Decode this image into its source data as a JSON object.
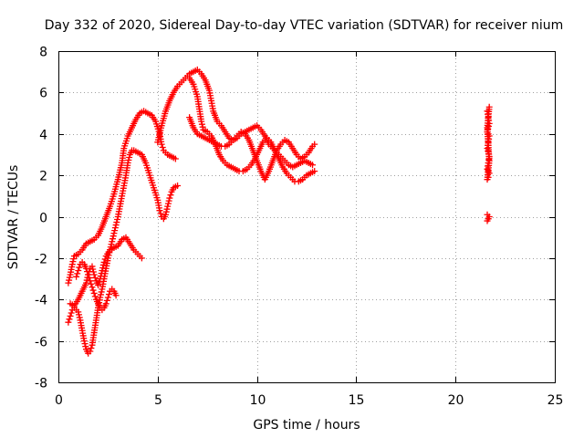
{
  "chart_data": {
    "type": "scatter",
    "title": "Day 332 of 2020, Sidereal Day-to-day VTEC variation (SDTVAR) for receiver nium",
    "xlabel": "GPS time / hours",
    "ylabel": "SDTVAR / TECUs",
    "xlim": [
      0,
      25
    ],
    "ylim": [
      -8,
      8
    ],
    "xticks": [
      "0",
      "5",
      "10",
      "15",
      "20",
      "25"
    ],
    "yticks": [
      "-8",
      "-6",
      "-4",
      "-2",
      "0",
      "2",
      "4",
      "6",
      "8"
    ],
    "grid": true,
    "marker": "plus",
    "color": "#ff0000",
    "series": [
      {
        "points": [
          [
            0.5,
            -3.2
          ],
          [
            0.6,
            -2.8
          ],
          [
            0.7,
            -2.3
          ],
          [
            0.8,
            -1.9
          ],
          [
            1.0,
            -1.8
          ],
          [
            1.2,
            -1.6
          ],
          [
            1.4,
            -1.3
          ],
          [
            1.6,
            -1.2
          ],
          [
            1.8,
            -1.1
          ],
          [
            2.0,
            -0.9
          ],
          [
            2.2,
            -0.5
          ],
          [
            2.4,
            0.0
          ],
          [
            2.6,
            0.5
          ],
          [
            2.8,
            1.1
          ],
          [
            3.0,
            1.8
          ],
          [
            3.2,
            2.6
          ],
          [
            3.3,
            3.3
          ],
          [
            3.5,
            3.9
          ],
          [
            3.7,
            4.3
          ],
          [
            3.9,
            4.7
          ],
          [
            4.1,
            5.0
          ],
          [
            4.3,
            5.1
          ],
          [
            4.5,
            5.0
          ],
          [
            4.7,
            4.9
          ],
          [
            4.9,
            4.6
          ],
          [
            5.1,
            4.0
          ],
          [
            5.2,
            3.5
          ],
          [
            5.3,
            3.2
          ],
          [
            5.5,
            3.0
          ],
          [
            5.7,
            2.9
          ],
          [
            5.9,
            2.8
          ]
        ]
      },
      {
        "points": [
          [
            0.5,
            -5.1
          ],
          [
            0.6,
            -4.8
          ],
          [
            0.7,
            -4.5
          ],
          [
            0.8,
            -4.4
          ],
          [
            1.0,
            -4.6
          ],
          [
            1.1,
            -5.0
          ],
          [
            1.2,
            -5.5
          ],
          [
            1.3,
            -6.0
          ],
          [
            1.4,
            -6.4
          ],
          [
            1.5,
            -6.6
          ],
          [
            1.6,
            -6.5
          ],
          [
            1.7,
            -6.2
          ],
          [
            1.8,
            -5.6
          ],
          [
            1.9,
            -5.0
          ],
          [
            2.0,
            -4.4
          ],
          [
            2.1,
            -3.9
          ],
          [
            2.2,
            -3.5
          ],
          [
            2.3,
            -3.0
          ],
          [
            2.4,
            -2.5
          ],
          [
            2.5,
            -2.0
          ],
          [
            2.6,
            -1.6
          ],
          [
            2.7,
            -1.2
          ],
          [
            2.8,
            -0.8
          ],
          [
            2.9,
            -0.4
          ],
          [
            3.0,
            0.0
          ],
          [
            3.1,
            0.5
          ],
          [
            3.2,
            1.0
          ],
          [
            3.3,
            1.5
          ],
          [
            3.4,
            2.0
          ],
          [
            3.5,
            2.6
          ],
          [
            3.6,
            3.0
          ],
          [
            3.7,
            3.2
          ],
          [
            3.8,
            3.2
          ],
          [
            4.0,
            3.1
          ],
          [
            4.2,
            3.0
          ],
          [
            4.4,
            2.6
          ],
          [
            4.6,
            2.0
          ],
          [
            4.8,
            1.4
          ],
          [
            5.0,
            0.8
          ],
          [
            5.1,
            0.3
          ],
          [
            5.2,
            0.0
          ],
          [
            5.3,
            -0.1
          ],
          [
            5.4,
            0.1
          ],
          [
            5.5,
            0.5
          ],
          [
            5.6,
            0.9
          ],
          [
            5.7,
            1.2
          ],
          [
            5.8,
            1.4
          ],
          [
            6.0,
            1.5
          ]
        ]
      },
      {
        "points": [
          [
            0.6,
            -4.2
          ],
          [
            0.8,
            -4.3
          ],
          [
            1.0,
            -4.0
          ],
          [
            1.2,
            -3.6
          ],
          [
            1.4,
            -3.2
          ],
          [
            1.5,
            -2.8
          ],
          [
            1.6,
            -2.5
          ],
          [
            1.7,
            -2.4
          ],
          [
            1.8,
            -2.8
          ],
          [
            1.9,
            -3.1
          ],
          [
            2.0,
            -3.3
          ],
          [
            2.1,
            -3.0
          ],
          [
            2.2,
            -2.6
          ],
          [
            2.3,
            -2.2
          ],
          [
            2.4,
            -1.9
          ],
          [
            2.6,
            -1.6
          ],
          [
            2.8,
            -1.5
          ],
          [
            3.0,
            -1.4
          ],
          [
            3.2,
            -1.1
          ],
          [
            3.4,
            -1.0
          ],
          [
            3.6,
            -1.3
          ],
          [
            3.8,
            -1.6
          ],
          [
            4.0,
            -1.8
          ],
          [
            4.2,
            -2.0
          ]
        ]
      },
      {
        "points": [
          [
            0.9,
            -2.9
          ],
          [
            1.0,
            -2.6
          ],
          [
            1.1,
            -2.3
          ],
          [
            1.2,
            -2.2
          ],
          [
            1.3,
            -2.3
          ],
          [
            1.4,
            -2.5
          ],
          [
            1.5,
            -2.8
          ],
          [
            1.6,
            -3.1
          ],
          [
            1.7,
            -3.4
          ],
          [
            1.8,
            -3.7
          ],
          [
            1.9,
            -4.0
          ],
          [
            2.0,
            -4.2
          ],
          [
            2.1,
            -4.4
          ],
          [
            2.2,
            -4.5
          ],
          [
            2.3,
            -4.4
          ],
          [
            2.4,
            -4.2
          ],
          [
            2.5,
            -3.9
          ],
          [
            2.6,
            -3.6
          ],
          [
            2.7,
            -3.5
          ],
          [
            2.8,
            -3.6
          ],
          [
            2.9,
            -3.8
          ]
        ]
      },
      {
        "points": [
          [
            5.0,
            3.6
          ],
          [
            5.2,
            4.4
          ],
          [
            5.4,
            5.1
          ],
          [
            5.6,
            5.6
          ],
          [
            5.8,
            6.0
          ],
          [
            6.0,
            6.3
          ],
          [
            6.2,
            6.5
          ],
          [
            6.4,
            6.7
          ],
          [
            6.6,
            6.9
          ],
          [
            6.8,
            7.0
          ],
          [
            7.0,
            7.1
          ],
          [
            7.2,
            6.9
          ],
          [
            7.4,
            6.6
          ],
          [
            7.6,
            6.1
          ],
          [
            7.7,
            5.6
          ],
          [
            7.8,
            5.1
          ],
          [
            8.0,
            4.6
          ],
          [
            8.2,
            4.4
          ],
          [
            8.4,
            4.1
          ],
          [
            8.6,
            3.8
          ],
          [
            8.8,
            3.7
          ],
          [
            9.0,
            3.8
          ],
          [
            9.2,
            4.0
          ],
          [
            9.4,
            4.1
          ],
          [
            9.6,
            4.2
          ],
          [
            9.8,
            4.3
          ],
          [
            10.0,
            4.4
          ],
          [
            10.2,
            4.2
          ],
          [
            10.4,
            3.9
          ],
          [
            10.6,
            3.5
          ],
          [
            10.8,
            3.3
          ],
          [
            11.0,
            3.1
          ],
          [
            11.2,
            2.9
          ],
          [
            11.4,
            2.7
          ],
          [
            11.6,
            2.5
          ],
          [
            11.8,
            2.4
          ],
          [
            12.0,
            2.5
          ],
          [
            12.2,
            2.6
          ],
          [
            12.4,
            2.7
          ],
          [
            12.6,
            2.6
          ],
          [
            12.8,
            2.5
          ]
        ]
      },
      {
        "points": [
          [
            6.6,
            6.7
          ],
          [
            6.8,
            6.4
          ],
          [
            7.0,
            5.8
          ],
          [
            7.1,
            5.2
          ],
          [
            7.2,
            4.6
          ],
          [
            7.3,
            4.2
          ],
          [
            7.5,
            4.1
          ],
          [
            7.7,
            3.9
          ],
          [
            7.9,
            3.5
          ],
          [
            8.1,
            3.0
          ],
          [
            8.3,
            2.7
          ],
          [
            8.5,
            2.5
          ],
          [
            8.7,
            2.4
          ],
          [
            8.9,
            2.3
          ],
          [
            9.1,
            2.2
          ],
          [
            9.3,
            2.2
          ],
          [
            9.5,
            2.3
          ],
          [
            9.7,
            2.5
          ],
          [
            9.9,
            2.8
          ],
          [
            10.1,
            3.2
          ],
          [
            10.3,
            3.6
          ],
          [
            10.5,
            3.8
          ],
          [
            10.7,
            3.6
          ],
          [
            10.9,
            3.2
          ],
          [
            11.1,
            2.8
          ],
          [
            11.3,
            2.4
          ],
          [
            11.5,
            2.1
          ],
          [
            11.7,
            1.9
          ],
          [
            11.9,
            1.7
          ],
          [
            12.1,
            1.7
          ],
          [
            12.3,
            1.8
          ],
          [
            12.5,
            2.0
          ],
          [
            12.7,
            2.1
          ],
          [
            12.9,
            2.2
          ]
        ]
      },
      {
        "points": [
          [
            6.6,
            4.8
          ],
          [
            6.8,
            4.3
          ],
          [
            7.0,
            4.0
          ],
          [
            7.2,
            3.9
          ],
          [
            7.4,
            3.8
          ],
          [
            7.6,
            3.7
          ],
          [
            7.8,
            3.6
          ],
          [
            8.0,
            3.5
          ],
          [
            8.2,
            3.4
          ],
          [
            8.4,
            3.4
          ],
          [
            8.6,
            3.5
          ],
          [
            8.8,
            3.7
          ],
          [
            9.0,
            3.9
          ],
          [
            9.2,
            4.1
          ],
          [
            9.4,
            4.0
          ],
          [
            9.6,
            3.7
          ],
          [
            9.8,
            3.2
          ],
          [
            10.0,
            2.7
          ],
          [
            10.2,
            2.2
          ],
          [
            10.4,
            1.8
          ],
          [
            10.6,
            2.2
          ],
          [
            10.8,
            2.7
          ],
          [
            11.0,
            3.2
          ],
          [
            11.2,
            3.5
          ],
          [
            11.4,
            3.7
          ],
          [
            11.6,
            3.6
          ],
          [
            11.8,
            3.3
          ],
          [
            12.0,
            3.0
          ],
          [
            12.2,
            2.8
          ],
          [
            12.4,
            2.9
          ],
          [
            12.6,
            3.1
          ],
          [
            12.8,
            3.4
          ],
          [
            12.9,
            3.5
          ]
        ]
      },
      {
        "points": [
          [
            21.6,
            5.1
          ],
          [
            21.65,
            4.8
          ],
          [
            21.7,
            4.5
          ],
          [
            21.6,
            4.1
          ],
          [
            21.7,
            3.9
          ],
          [
            21.65,
            3.6
          ],
          [
            21.6,
            3.3
          ],
          [
            21.7,
            2.9
          ],
          [
            21.65,
            2.6
          ],
          [
            21.6,
            2.3
          ],
          [
            21.7,
            2.1
          ],
          [
            21.65,
            1.9
          ],
          [
            21.6,
            1.8
          ],
          [
            21.7,
            2.7
          ],
          [
            21.6,
            4.3
          ],
          [
            21.7,
            5.3
          ],
          [
            21.6,
            0.1
          ],
          [
            21.65,
            -0.1
          ],
          [
            21.7,
            0.0
          ],
          [
            21.6,
            -0.2
          ]
        ]
      }
    ]
  }
}
